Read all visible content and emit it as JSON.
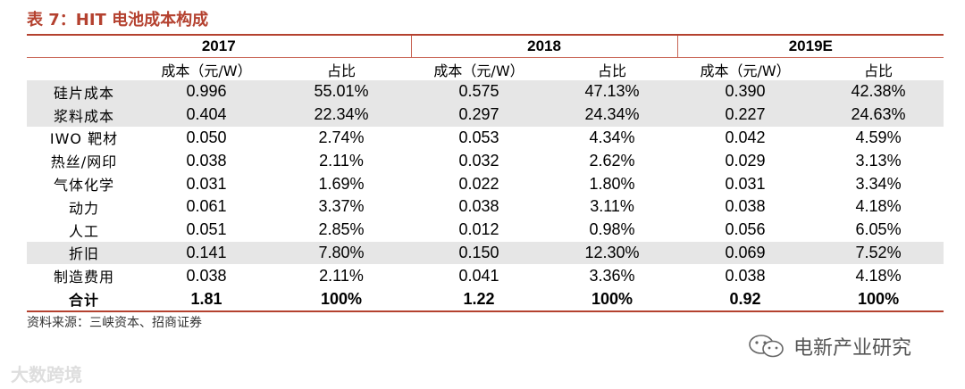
{
  "title": "表 7：HIT 电池成本构成",
  "years": [
    "2017",
    "2018",
    "2019E"
  ],
  "sub_headers": {
    "cost": "成本（元/W）",
    "share": "占比"
  },
  "rows": [
    {
      "label": "硅片成本",
      "shaded": true,
      "v": [
        "0.996",
        "55.01%",
        "0.575",
        "47.13%",
        "0.390",
        "42.38%"
      ]
    },
    {
      "label": "浆料成本",
      "shaded": true,
      "v": [
        "0.404",
        "22.34%",
        "0.297",
        "24.34%",
        "0.227",
        "24.63%"
      ]
    },
    {
      "label": "IWO 靶材",
      "shaded": false,
      "v": [
        "0.050",
        "2.74%",
        "0.053",
        "4.34%",
        "0.042",
        "4.59%"
      ]
    },
    {
      "label": "热丝/网印",
      "shaded": false,
      "v": [
        "0.038",
        "2.11%",
        "0.032",
        "2.62%",
        "0.029",
        "3.13%"
      ]
    },
    {
      "label": "气体化学",
      "shaded": false,
      "v": [
        "0.031",
        "1.69%",
        "0.022",
        "1.80%",
        "0.031",
        "3.34%"
      ]
    },
    {
      "label": "动力",
      "shaded": false,
      "v": [
        "0.061",
        "3.37%",
        "0.038",
        "3.11%",
        "0.038",
        "4.18%"
      ]
    },
    {
      "label": "人工",
      "shaded": false,
      "v": [
        "0.051",
        "2.85%",
        "0.012",
        "0.98%",
        "0.056",
        "6.05%"
      ]
    },
    {
      "label": "折旧",
      "shaded": true,
      "v": [
        "0.141",
        "7.80%",
        "0.150",
        "12.30%",
        "0.069",
        "7.52%"
      ]
    },
    {
      "label": "制造费用",
      "shaded": false,
      "v": [
        "0.038",
        "2.11%",
        "0.041",
        "3.36%",
        "0.038",
        "4.18%"
      ]
    }
  ],
  "total": {
    "label": "合计",
    "v": [
      "1.81",
      "100%",
      "1.22",
      "100%",
      "0.92",
      "100%"
    ]
  },
  "source": "资料来源：三峡资本、招商证券",
  "watermark_left": "大数跨境",
  "watermark_right": "电新产业研究",
  "colors": {
    "accent": "#b4412f",
    "shade": "#e6e6e6"
  }
}
